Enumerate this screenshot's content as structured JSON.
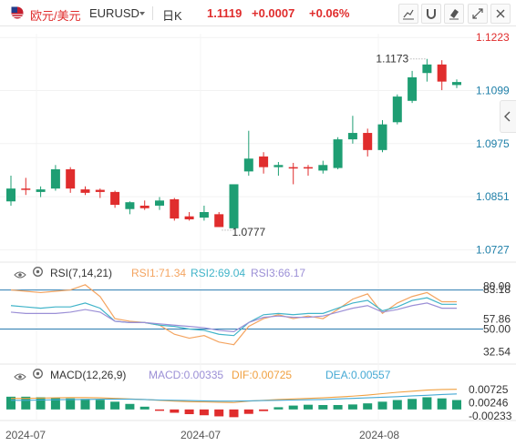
{
  "header": {
    "symbol_label": "欧元/美元",
    "ticker": "EURUSD",
    "interval": "日K",
    "price": "1.1119",
    "change": "+0.0007",
    "change_pct": "+0.06%"
  },
  "icons": [
    "flag-icon",
    "dropdown-caret-icon",
    "line-tool-icon",
    "magnet-icon",
    "eraser-icon",
    "fullscreen-icon",
    "close-icon",
    "eye-icon",
    "settings-icon",
    "collapse-arrow-icon"
  ],
  "colors": {
    "up": "#1e9e73",
    "down": "#e02d2d",
    "accent_red": "#e02d2d",
    "rsi1": "#f4a460",
    "rsi2": "#41b4c9",
    "rsi3": "#9b8fd6",
    "dif": "#f0a040",
    "dea": "#45a9d4",
    "macd_label": "#9b8fd6"
  },
  "rsi": {
    "title": "RSI(7,14,21)",
    "rsi1": "RSI1:71.34",
    "rsi2": "RSI2:69.04",
    "rsi3": "RSI3:66.17"
  },
  "macd": {
    "title": "MACD(12,26,9)",
    "macd": "MACD:0.00335",
    "dif": "DIF:0.00725",
    "dea": "DEA:0.00557"
  },
  "chart_data": [
    {
      "type": "candlestick",
      "ylim": [
        1.0715,
        1.1232
      ],
      "y_ticks": [
        "1.1223",
        "1.1099",
        "1.0975",
        "1.0851",
        "1.0727"
      ],
      "x_tick_labels": [
        "2024-07",
        "2024-07",
        "2024-08"
      ],
      "annotations": {
        "high": "1.1173",
        "low": "1.0777"
      },
      "candles": [
        {
          "o": 1.084,
          "h": 1.09,
          "l": 1.083,
          "c": 1.087
        },
        {
          "o": 1.087,
          "h": 1.0895,
          "l": 1.0855,
          "c": 1.0868
        },
        {
          "o": 1.0862,
          "h": 1.0875,
          "l": 1.085,
          "c": 1.0868
        },
        {
          "o": 1.087,
          "h": 1.0925,
          "l": 1.0865,
          "c": 1.0915
        },
        {
          "o": 1.0915,
          "h": 1.092,
          "l": 1.086,
          "c": 1.087
        },
        {
          "o": 1.0868,
          "h": 1.0875,
          "l": 1.0855,
          "c": 1.086
        },
        {
          "o": 1.0867,
          "h": 1.087,
          "l": 1.0848,
          "c": 1.0862
        },
        {
          "o": 1.0862,
          "h": 1.0865,
          "l": 1.0825,
          "c": 1.0832
        },
        {
          "o": 1.0822,
          "h": 1.084,
          "l": 1.081,
          "c": 1.0838
        },
        {
          "o": 1.083,
          "h": 1.0842,
          "l": 1.082,
          "c": 1.0824
        },
        {
          "o": 1.083,
          "h": 1.085,
          "l": 1.082,
          "c": 1.0842
        },
        {
          "o": 1.0845,
          "h": 1.0848,
          "l": 1.0795,
          "c": 1.08
        },
        {
          "o": 1.0805,
          "h": 1.0815,
          "l": 1.0795,
          "c": 1.0798
        },
        {
          "o": 1.0802,
          "h": 1.083,
          "l": 1.0795,
          "c": 1.0815
        },
        {
          "o": 1.081,
          "h": 1.0815,
          "l": 1.078,
          "c": 1.078
        },
        {
          "o": 1.0777,
          "h": 1.088,
          "l": 1.0777,
          "c": 1.088
        },
        {
          "o": 1.091,
          "h": 1.1005,
          "l": 1.09,
          "c": 1.094
        },
        {
          "o": 1.0945,
          "h": 1.0955,
          "l": 1.0905,
          "c": 1.092
        },
        {
          "o": 1.092,
          "h": 1.0932,
          "l": 1.09,
          "c": 1.0925
        },
        {
          "o": 1.092,
          "h": 1.093,
          "l": 1.088,
          "c": 1.0918
        },
        {
          "o": 1.092,
          "h": 1.0925,
          "l": 1.09,
          "c": 1.0918
        },
        {
          "o": 1.0912,
          "h": 1.0935,
          "l": 1.0905,
          "c": 1.0925
        },
        {
          "o": 1.0918,
          "h": 1.099,
          "l": 1.0915,
          "c": 1.0985
        },
        {
          "o": 1.0985,
          "h": 1.104,
          "l": 1.0975,
          "c": 1.1
        },
        {
          "o": 1.1,
          "h": 1.101,
          "l": 1.0945,
          "c": 1.096
        },
        {
          "o": 1.096,
          "h": 1.103,
          "l": 1.0955,
          "c": 1.102
        },
        {
          "o": 1.1025,
          "h": 1.109,
          "l": 1.102,
          "c": 1.1085
        },
        {
          "o": 1.1075,
          "h": 1.1145,
          "l": 1.107,
          "c": 1.113
        },
        {
          "o": 1.114,
          "h": 1.1173,
          "l": 1.112,
          "c": 1.116
        },
        {
          "o": 1.116,
          "h": 1.117,
          "l": 1.11,
          "c": 1.112
        },
        {
          "o": 1.1112,
          "h": 1.1125,
          "l": 1.1105,
          "c": 1.1119
        }
      ]
    },
    {
      "type": "line",
      "name": "RSI",
      "ylim": [
        28,
        86
      ],
      "y_ticks": [
        "83.18",
        "80.00",
        "57.86",
        "50.00",
        "32.54"
      ],
      "ref_lines": [
        80,
        50
      ],
      "series": [
        {
          "name": "RSI1",
          "values": [
            80,
            79,
            78,
            79,
            80,
            84,
            75,
            58,
            56,
            55,
            53,
            46,
            43,
            45,
            40,
            38,
            52,
            58,
            61,
            58,
            60,
            58,
            65,
            73,
            77,
            62,
            70,
            75,
            78,
            71,
            71
          ]
        },
        {
          "name": "RSI2",
          "values": [
            68,
            67,
            66,
            67,
            67,
            70,
            66,
            56,
            55,
            55,
            53,
            52,
            50,
            49,
            46,
            45,
            55,
            61,
            62,
            61,
            62,
            62,
            66,
            70,
            72,
            64,
            67,
            72,
            74,
            69,
            69
          ]
        },
        {
          "name": "RSI3",
          "values": [
            63,
            62,
            62,
            62,
            63,
            65,
            63,
            56,
            55,
            55,
            54,
            53,
            52,
            51,
            49,
            48,
            55,
            59,
            60,
            59,
            59,
            60,
            63,
            66,
            68,
            63,
            65,
            68,
            70,
            66,
            66
          ]
        }
      ]
    },
    {
      "type": "bar",
      "name": "MACD",
      "ylim": [
        -0.004,
        0.0085
      ],
      "y_ticks": [
        "0.00725",
        "0.00246",
        "-0.00233"
      ],
      "histogram": [
        0.0046,
        0.0046,
        0.0044,
        0.0042,
        0.004,
        0.0038,
        0.0035,
        0.0028,
        0.002,
        0.001,
        -0.0003,
        -0.0012,
        -0.0017,
        -0.0021,
        -0.0025,
        -0.0028,
        -0.0016,
        -0.0006,
        0.0008,
        0.0014,
        0.0017,
        0.0016,
        0.0016,
        0.0018,
        0.0022,
        0.0028,
        0.0034,
        0.0038,
        0.0044,
        0.004,
        0.0034
      ],
      "series": [
        {
          "name": "DIF",
          "values": [
            0.004,
            0.004,
            0.0041,
            0.0042,
            0.0043,
            0.0043,
            0.0042,
            0.004,
            0.0038,
            0.0036,
            0.0033,
            0.003,
            0.0028,
            0.0027,
            0.0026,
            0.0025,
            0.003,
            0.0033,
            0.0036,
            0.0038,
            0.004,
            0.0042,
            0.0045,
            0.0048,
            0.0052,
            0.0057,
            0.0062,
            0.0066,
            0.007,
            0.0072,
            0.0073
          ]
        },
        {
          "name": "DEA",
          "values": [
            0.0033,
            0.0033,
            0.0034,
            0.0035,
            0.0036,
            0.0036,
            0.0037,
            0.0037,
            0.0037,
            0.0036,
            0.0034,
            0.0033,
            0.0032,
            0.0031,
            0.003,
            0.003,
            0.0031,
            0.0032,
            0.0033,
            0.0034,
            0.0035,
            0.0036,
            0.0038,
            0.004,
            0.0042,
            0.0044,
            0.0046,
            0.0049,
            0.0051,
            0.0054,
            0.0056
          ]
        }
      ]
    }
  ]
}
